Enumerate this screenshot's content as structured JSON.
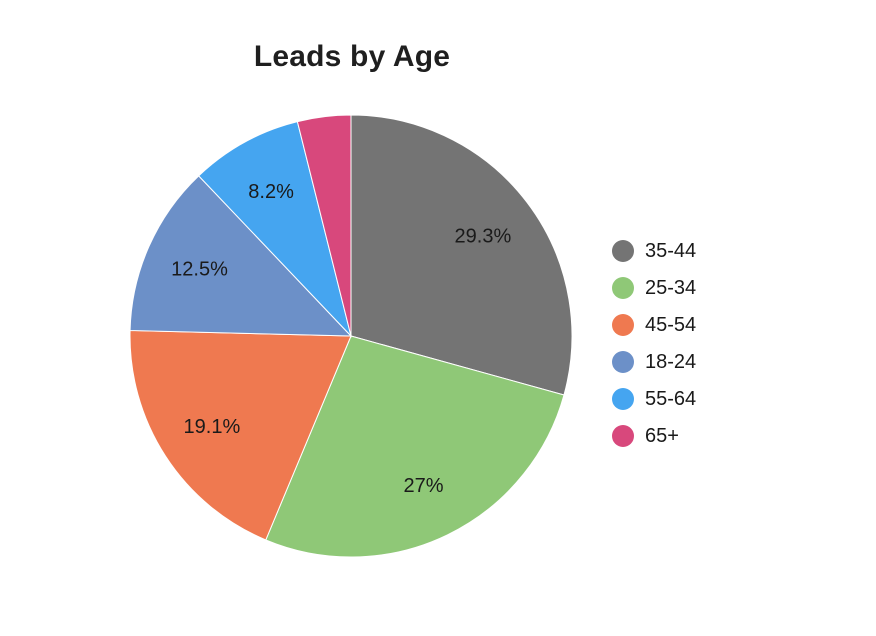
{
  "page": {
    "background": "#ffffff"
  },
  "chart_data": {
    "type": "pie",
    "title": "Leads by Age",
    "legend_position": "right",
    "start_angle_deg": 0,
    "direction": "clockwise",
    "label_color": "#1a1a1a",
    "slices": [
      {
        "label": "35-44",
        "value": 29.3,
        "display": "29.3%",
        "color": "#747474"
      },
      {
        "label": "25-34",
        "value": 27,
        "display": "27%",
        "color": "#8FC877"
      },
      {
        "label": "45-54",
        "value": 19.1,
        "display": "19.1%",
        "color": "#EF7950"
      },
      {
        "label": "18-24",
        "value": 12.5,
        "display": "12.5%",
        "color": "#6C90C8"
      },
      {
        "label": "55-64",
        "value": 8.2,
        "display": "8.2%",
        "color": "#45A5F0"
      },
      {
        "label": "65+",
        "value": 3.9,
        "display": "",
        "color": "#D8487C"
      }
    ]
  }
}
